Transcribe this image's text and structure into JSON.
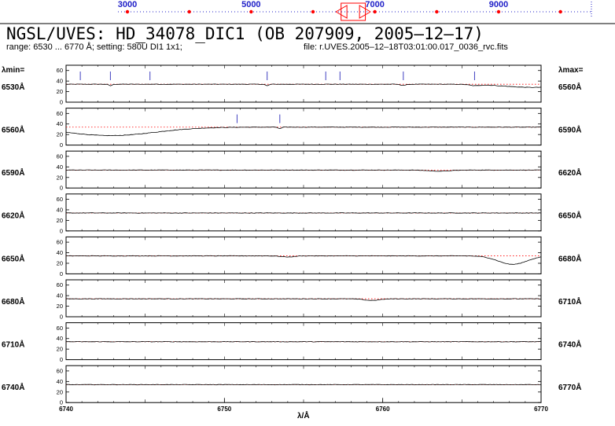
{
  "header": {
    "title": "NGSL/UVES: HD_34078_DIC1 (OB 207909, 2005‒12‒17)",
    "range_text": "range: 6530 ... 6770 Å; setting: 580U DI1 1x1;",
    "file_text": "file: r.UVES.2005‒12‒18T03:01:00.017_0036_rvc.fits"
  },
  "overview": {
    "labels": [
      "3000",
      "5000",
      "7000",
      "9000"
    ],
    "label_values": [
      3000,
      5000,
      7000,
      9000
    ],
    "markers": [
      3000,
      4000,
      5000,
      6000,
      7000,
      8000,
      9000,
      10000
    ],
    "range": [
      3000,
      10500
    ],
    "window": [
      6530,
      6770
    ]
  },
  "side_labels": {
    "lambda_min": "λmin=",
    "lambda_max": "λmax=",
    "axis_label": "λ/Å"
  },
  "chart_data": {
    "type": "line",
    "colors": {
      "flux": "#000000",
      "continuum": "#ff0000",
      "lines": "#4040c0",
      "nav": "#2020c8"
    },
    "ylim": [
      0,
      70
    ],
    "yticks": [
      "0",
      "20",
      "40",
      "60"
    ],
    "xticks": [
      "6740",
      "6750",
      "6760",
      "6770"
    ],
    "xtick_values": [
      6740,
      6750,
      6760,
      6770
    ],
    "panels": [
      {
        "min_label": "6530Å",
        "max_label": "6560Å",
        "range": [
          6530,
          6560
        ],
        "line_marks": [
          6530.9,
          6532.8,
          6535.3,
          6542.7,
          6546.4,
          6547.3,
          6551.3,
          6555.8
        ],
        "features": [
          {
            "center": 6532.8,
            "depth": 3,
            "width": 0.1
          },
          {
            "center": 6542.7,
            "depth": 3,
            "width": 0.1
          },
          {
            "center": 6551.3,
            "depth": 2,
            "width": 0.2
          },
          {
            "center": 6555.8,
            "depth": 2,
            "width": 0.3
          },
          {
            "center": 6559.5,
            "depth": 6,
            "width": 1.8
          }
        ]
      },
      {
        "min_label": "6560Å",
        "max_label": "6590Å",
        "range": [
          6560,
          6590
        ],
        "line_marks": [
          6570.8,
          6573.5
        ],
        "features": [
          {
            "center": 6562.8,
            "depth": 16,
            "width": 2.8
          },
          {
            "center": 6573.5,
            "depth": 3,
            "width": 0.1
          }
        ]
      },
      {
        "min_label": "6590Å",
        "max_label": "6620Å",
        "range": [
          6590,
          6620
        ],
        "line_marks": [],
        "features": [
          {
            "center": 6613.6,
            "depth": 2,
            "width": 0.7
          }
        ]
      },
      {
        "min_label": "6620Å",
        "max_label": "6650Å",
        "range": [
          6620,
          6650
        ],
        "line_marks": [],
        "features": []
      },
      {
        "min_label": "6650Å",
        "max_label": "6680Å",
        "range": [
          6650,
          6680
        ],
        "line_marks": [],
        "features": [
          {
            "center": 6664.0,
            "depth": 2,
            "width": 0.4
          },
          {
            "center": 6678.2,
            "depth": 16,
            "width": 0.9
          }
        ]
      },
      {
        "min_label": "6680Å",
        "max_label": "6710Å",
        "range": [
          6680,
          6710
        ],
        "line_marks": [],
        "features": [
          {
            "center": 6699.3,
            "depth": 3,
            "width": 0.5
          }
        ]
      },
      {
        "min_label": "6710Å",
        "max_label": "6740Å",
        "range": [
          6710,
          6740
        ],
        "line_marks": [],
        "features": []
      },
      {
        "min_label": "6740Å",
        "max_label": "6770Å",
        "range": [
          6740,
          6770
        ],
        "line_marks": [],
        "features": []
      }
    ],
    "continuum_level": 34
  }
}
